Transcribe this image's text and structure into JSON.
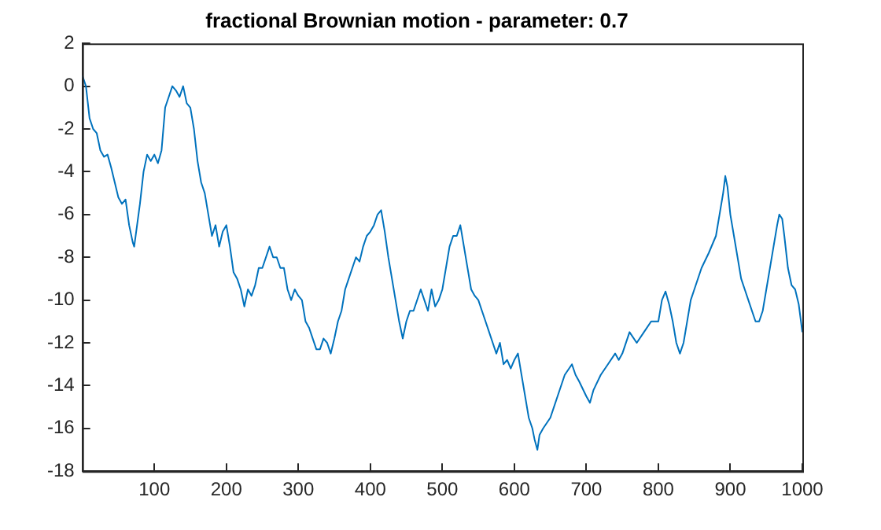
{
  "chart_data": {
    "type": "line",
    "title": "fractional Brownian motion - parameter: 0.7",
    "x": [
      0,
      5,
      10,
      15,
      20,
      25,
      30,
      35,
      40,
      45,
      50,
      55,
      60,
      65,
      70,
      72,
      80,
      85,
      90,
      95,
      100,
      105,
      110,
      115,
      120,
      125,
      130,
      135,
      140,
      145,
      150,
      155,
      160,
      165,
      170,
      175,
      180,
      185,
      190,
      195,
      200,
      205,
      210,
      215,
      220,
      225,
      230,
      235,
      240,
      245,
      250,
      260,
      265,
      270,
      275,
      280,
      285,
      290,
      295,
      300,
      305,
      310,
      315,
      320,
      325,
      330,
      335,
      340,
      345,
      350,
      355,
      360,
      365,
      370,
      375,
      380,
      385,
      390,
      395,
      400,
      405,
      410,
      415,
      420,
      425,
      430,
      435,
      440,
      445,
      450,
      455,
      460,
      470,
      475,
      480,
      485,
      490,
      495,
      500,
      505,
      510,
      515,
      520,
      525,
      530,
      535,
      540,
      545,
      550,
      555,
      560,
      565,
      570,
      575,
      580,
      585,
      590,
      595,
      600,
      605,
      610,
      615,
      620,
      625,
      628,
      632,
      635,
      640,
      650,
      655,
      660,
      670,
      680,
      685,
      690,
      700,
      705,
      710,
      720,
      730,
      740,
      745,
      750,
      760,
      770,
      780,
      790,
      800,
      805,
      810,
      815,
      820,
      825,
      830,
      835,
      840,
      845,
      850,
      860,
      870,
      880,
      885,
      890,
      893,
      896,
      900,
      905,
      910,
      915,
      920,
      925,
      930,
      935,
      940,
      945,
      950,
      955,
      960,
      965,
      968,
      972,
      975,
      980,
      985,
      990,
      995,
      1000
    ],
    "series": [
      {
        "color": "#0072bd",
        "values": [
          0.5,
          0,
          -1.5,
          -2,
          -2.2,
          -3,
          -3.3,
          -3.2,
          -3.8,
          -4.5,
          -5.2,
          -5.5,
          -5.3,
          -6.5,
          -7.3,
          -7.5,
          -5.5,
          -4,
          -3.2,
          -3.5,
          -3.2,
          -3.6,
          -3,
          -1,
          -0.5,
          0,
          -0.2,
          -0.5,
          0,
          -0.8,
          -1,
          -2,
          -3.5,
          -4.5,
          -5,
          -6,
          -7,
          -6.5,
          -7.5,
          -6.8,
          -6.5,
          -7.5,
          -8.7,
          -9,
          -9.5,
          -10.3,
          -9.5,
          -9.8,
          -9.3,
          -8.5,
          -8.5,
          -7.5,
          -8,
          -8,
          -8.5,
          -8.5,
          -9.5,
          -10,
          -9.5,
          -9.8,
          -10,
          -11,
          -11.3,
          -11.8,
          -12.3,
          -12.3,
          -11.8,
          -12,
          -12.5,
          -11.8,
          -11,
          -10.5,
          -9.5,
          -9,
          -8.5,
          -8,
          -8.2,
          -7.5,
          -7,
          -6.8,
          -6.5,
          -6,
          -5.8,
          -6.8,
          -8,
          -9,
          -10,
          -11,
          -11.8,
          -11,
          -10.5,
          -10.5,
          -9.5,
          -10,
          -10.5,
          -9.5,
          -10.3,
          -10,
          -9.5,
          -8.5,
          -7.5,
          -7,
          -7,
          -6.5,
          -7.5,
          -8.5,
          -9.5,
          -9.8,
          -10,
          -10.5,
          -11,
          -11.5,
          -12,
          -12.5,
          -12,
          -13,
          -12.8,
          -13.2,
          -12.8,
          -12.5,
          -13.5,
          -14.5,
          -15.5,
          -16,
          -16.5,
          -17,
          -16.3,
          -16,
          -15.5,
          -15,
          -14.5,
          -13.5,
          -13,
          -13.5,
          -13.8,
          -14.5,
          -14.8,
          -14.2,
          -13.5,
          -13,
          -12.5,
          -12.8,
          -12.5,
          -11.5,
          -12,
          -11.5,
          -11,
          -11,
          -10,
          -9.6,
          -10.2,
          -11,
          -12,
          -12.5,
          -12,
          -11,
          -10,
          -9.5,
          -8.5,
          -7.8,
          -7,
          -6,
          -5,
          -4.2,
          -4.7,
          -6,
          -7,
          -8,
          -9,
          -9.5,
          -10,
          -10.5,
          -11,
          -11,
          -10.5,
          -9.5,
          -8.5,
          -7.5,
          -6.5,
          -6,
          -6.2,
          -7,
          -8.5,
          -9.3,
          -9.5,
          -10.2,
          -11.5
        ]
      }
    ],
    "xlim": [
      0,
      1000
    ],
    "xticks": [
      100,
      200,
      300,
      400,
      500,
      600,
      700,
      800,
      900,
      1000
    ],
    "ylim": [
      -18,
      2
    ],
    "yticks": [
      -18,
      -16,
      -14,
      -12,
      -10,
      -8,
      -6,
      -4,
      -2,
      0,
      2
    ],
    "grid": false,
    "legend": false,
    "marker": "none",
    "line_style": "solid"
  }
}
